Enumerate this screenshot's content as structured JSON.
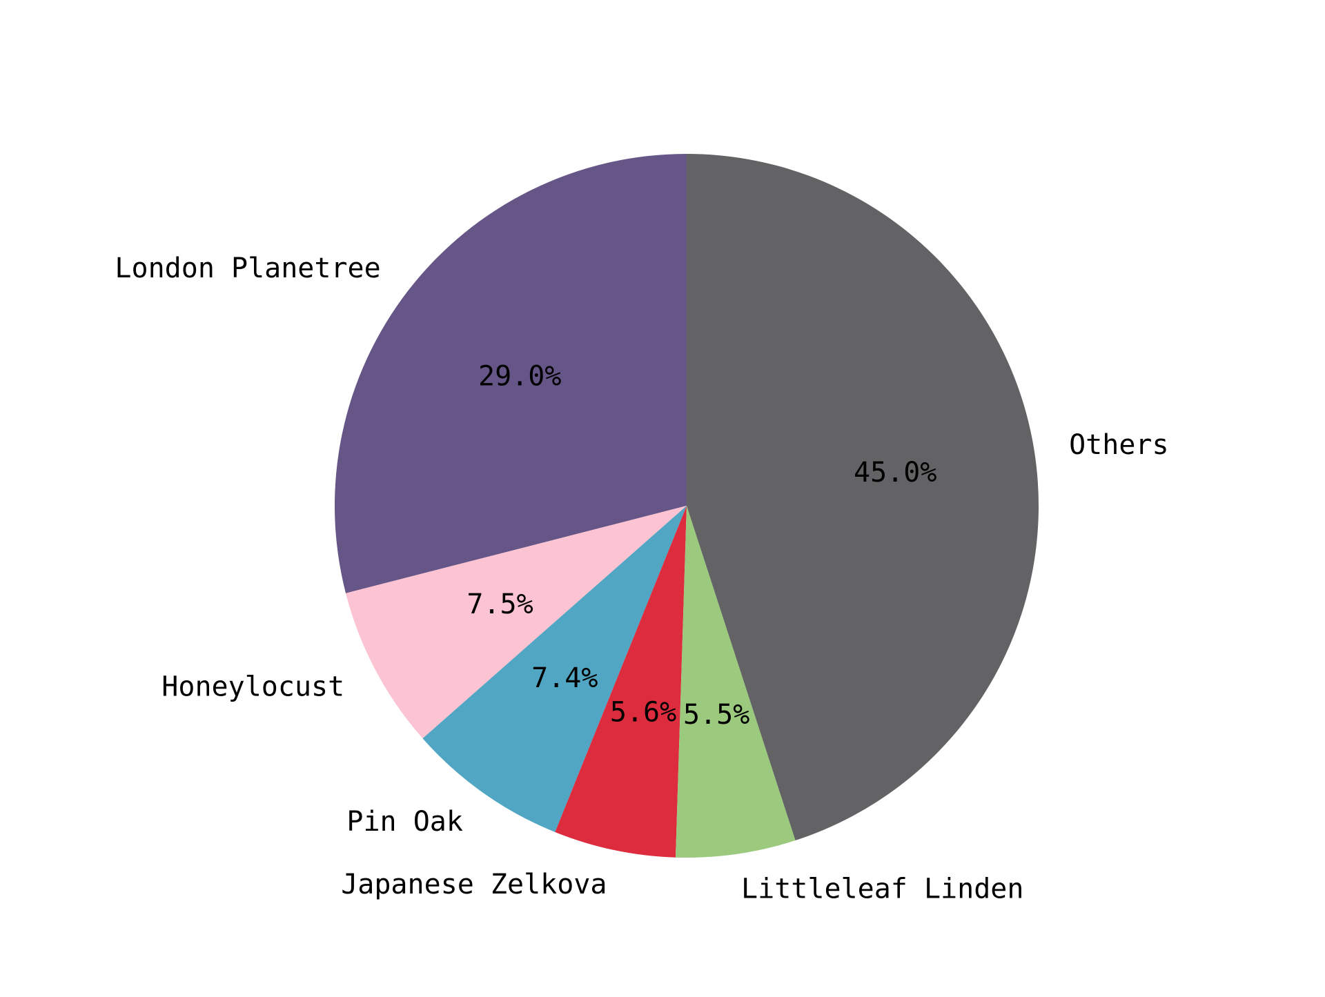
{
  "chart_data": {
    "type": "pie",
    "title": "",
    "start_angle_deg": 90,
    "direction": "counterclockwise",
    "slices": [
      {
        "label": "London Planetree",
        "value": 29.0,
        "pct_text": "29.0%",
        "color": "#665687"
      },
      {
        "label": "Honeylocust",
        "value": 7.5,
        "pct_text": "7.5%",
        "color": "#fcc3d2"
      },
      {
        "label": "Pin Oak",
        "value": 7.4,
        "pct_text": "7.4%",
        "color": "#51a7c3"
      },
      {
        "label": "Japanese Zelkova",
        "value": 5.6,
        "pct_text": "5.6%",
        "color": "#dc2c3e"
      },
      {
        "label": "Littleleaf Linden",
        "value": 5.5,
        "pct_text": "5.5%",
        "color": "#9bca7e"
      },
      {
        "label": "Others",
        "value": 45.0,
        "pct_text": "45.0%",
        "color": "#636264"
      }
    ]
  }
}
